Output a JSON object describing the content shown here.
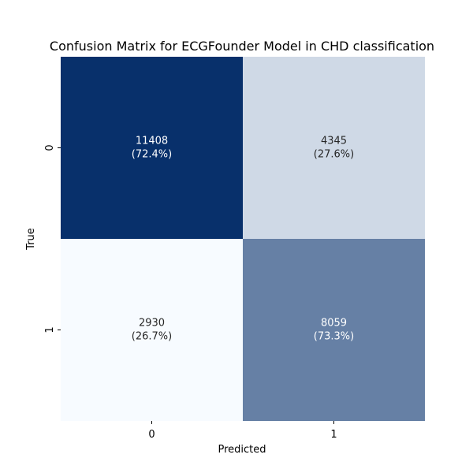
{
  "chart_data": {
    "type": "heatmap",
    "title": "Confusion Matrix for ECGFounder Model in CHD classification",
    "xlabel": "Predicted",
    "ylabel": "True",
    "x_categories": [
      "0",
      "1"
    ],
    "y_categories": [
      "0",
      "1"
    ],
    "values": [
      [
        11408,
        4345
      ],
      [
        2930,
        8059
      ]
    ],
    "percentages": [
      [
        "72.4%",
        "27.6%"
      ],
      [
        "26.7%",
        "73.3%"
      ]
    ],
    "colormap": "Blues",
    "color_min": "#f7fbff",
    "color_max": "#08306b",
    "colorbar": false
  }
}
